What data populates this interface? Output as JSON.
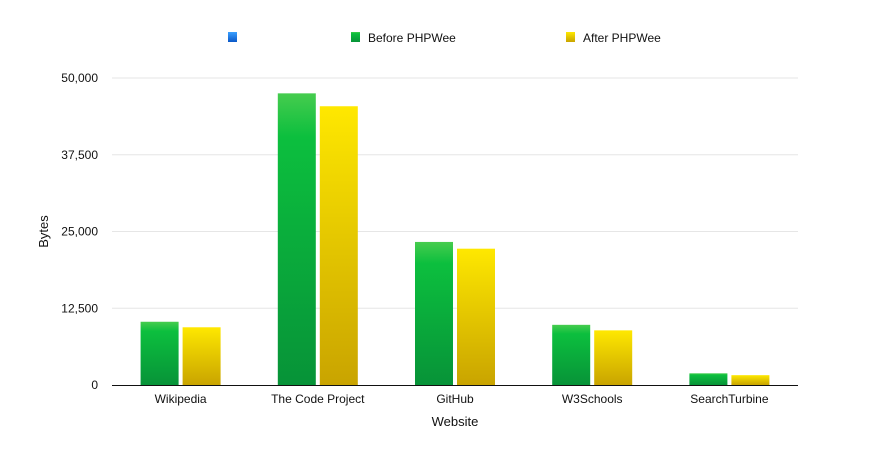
{
  "chart_data": {
    "type": "bar",
    "title": "",
    "xlabel": "Website",
    "ylabel": "Bytes",
    "categories": [
      "Wikipedia",
      "The Code Project",
      "GitHub",
      "W3Schools",
      "SearchTurbine"
    ],
    "series": [
      {
        "name": "",
        "values": [
          0,
          0,
          0,
          0,
          0
        ],
        "color": "#1a6fe0"
      },
      {
        "name": "Before PHPWee",
        "values": [
          10300,
          47500,
          23300,
          9800,
          1900
        ],
        "color": "#13b83a"
      },
      {
        "name": "After PHPWee",
        "values": [
          9400,
          45400,
          22200,
          8900,
          1600
        ],
        "color": "#e6c200"
      }
    ],
    "ylim": [
      0,
      50000
    ],
    "yticks": [
      0,
      12500,
      25000,
      37500,
      50000
    ],
    "ytick_labels": [
      "0",
      "12,500",
      "25,000",
      "37,500",
      "50,000"
    ],
    "grid": true,
    "legend_position": "top"
  }
}
